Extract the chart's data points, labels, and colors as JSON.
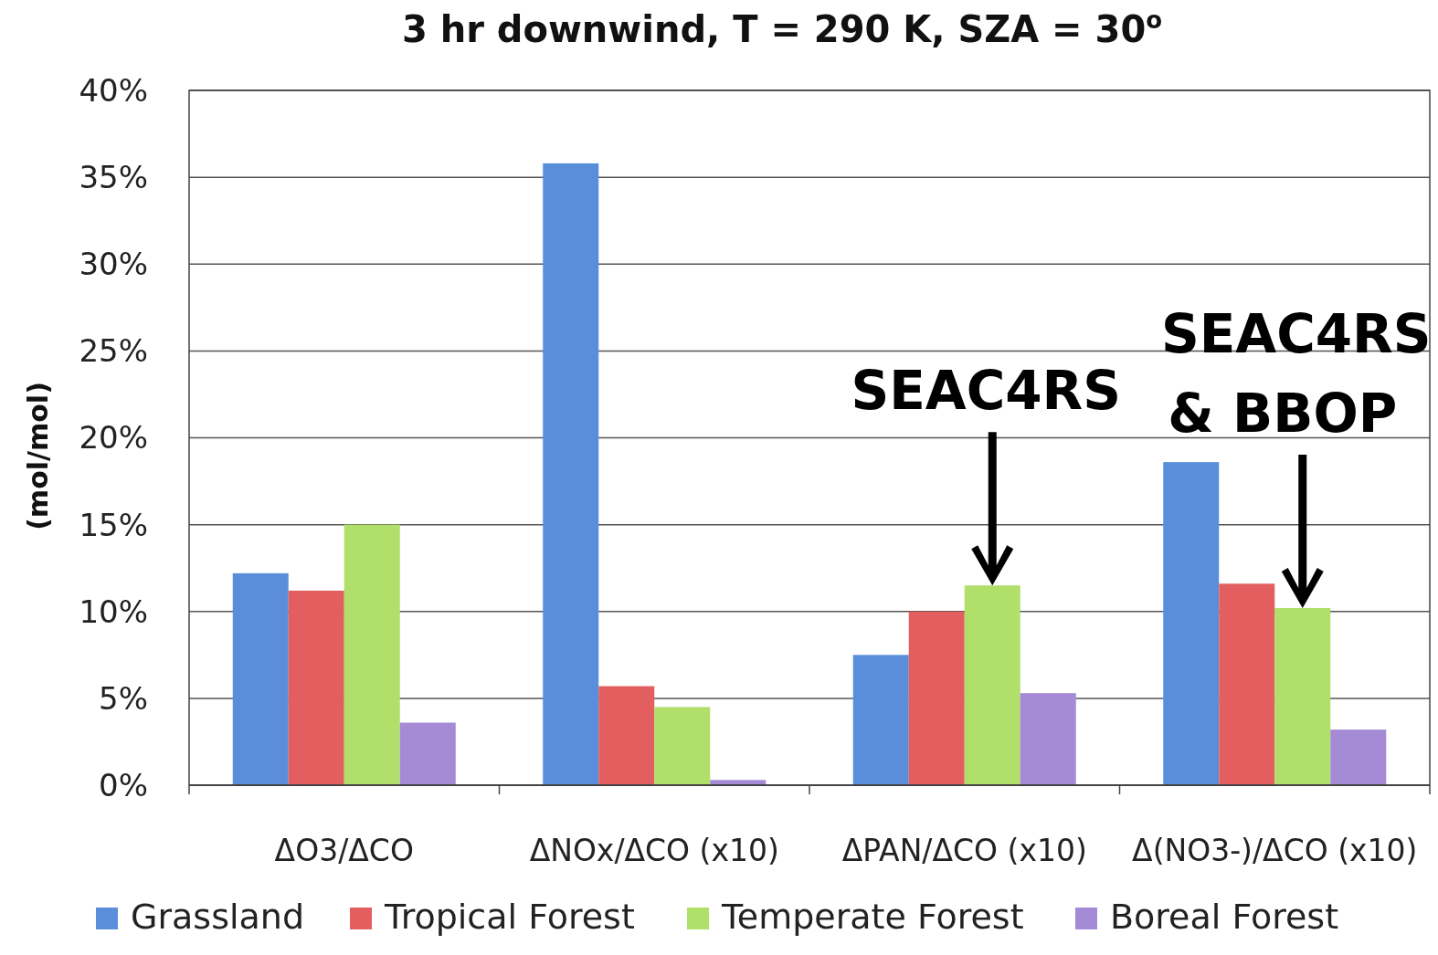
{
  "chart_data": {
    "type": "bar",
    "title": "3 hr downwind, T = 290 K, SZA = 30$^{o}$",
    "ylabel": "(mol/mol)",
    "categories": [
      "ΔO3/ΔCO",
      "ΔNOx/ΔCO (x10)",
      "ΔPAN/ΔCO (x10)",
      "Δ(NO3-)/ΔCO (x10)"
    ],
    "series": [
      {
        "name": "Grassland",
        "color": "#5a8edb",
        "values": [
          12.2,
          35.8,
          7.5,
          18.6
        ]
      },
      {
        "name": "Tropical Forest",
        "color": "#e35f5f",
        "values": [
          11.2,
          5.7,
          10.0,
          11.6
        ]
      },
      {
        "name": "Temperate Forest",
        "color": "#b0df6a",
        "values": [
          15.0,
          4.5,
          11.5,
          10.2
        ]
      },
      {
        "name": "Boreal Forest",
        "color": "#a58bd6",
        "values": [
          3.6,
          0.3,
          5.3,
          3.2
        ]
      }
    ],
    "ylim": [
      0,
      40
    ],
    "yticks": [
      {
        "value": 0,
        "label": "0%"
      },
      {
        "value": 5,
        "label": "5%"
      },
      {
        "value": 10,
        "label": "10%"
      },
      {
        "value": 15,
        "label": "15%"
      },
      {
        "value": 20,
        "label": "20%"
      },
      {
        "value": 25,
        "label": "25%"
      },
      {
        "value": 30,
        "label": "30%"
      },
      {
        "value": 35,
        "label": "35%"
      },
      {
        "value": 40,
        "label": "40%"
      }
    ],
    "grid": "y",
    "legend": "bottom",
    "annotations": [
      "SEAC4RS",
      "SEAC4RS & BBOP"
    ]
  }
}
